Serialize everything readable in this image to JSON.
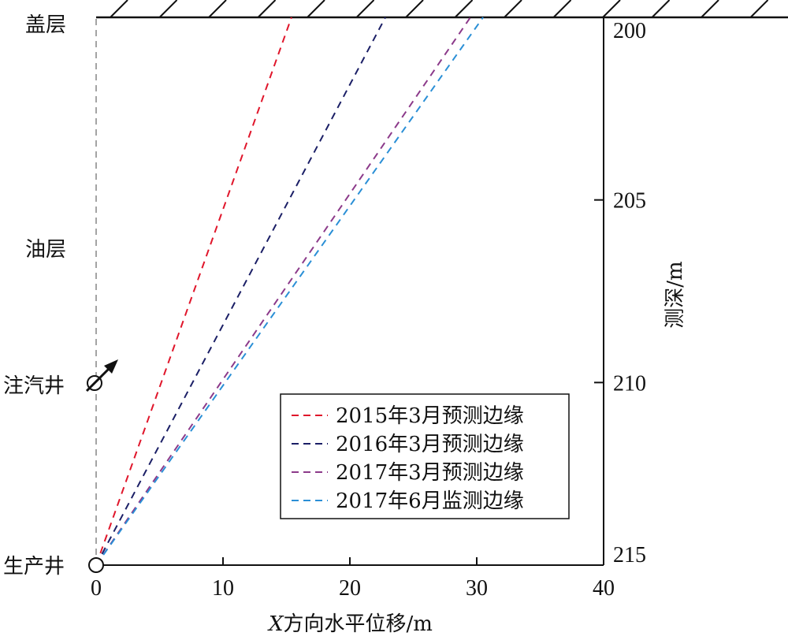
{
  "chart_data": {
    "type": "line",
    "xlabel": "X方向水平位移/m",
    "ylabel": "测深/m",
    "xlim": [
      0,
      40
    ],
    "ylim": [
      200,
      215
    ],
    "x_ticks": [
      0,
      10,
      20,
      30,
      40
    ],
    "y_ticks": [
      200,
      205,
      210,
      215
    ],
    "grid": false,
    "legend_position": "bottom-center",
    "series": [
      {
        "name": "2015年3月预测边缘",
        "color": "#e0162b",
        "x": [
          0,
          15.4
        ],
        "y": [
          215,
          200
        ]
      },
      {
        "name": "2016年3月预测边缘",
        "color": "#1b1f66",
        "x": [
          0,
          22.8
        ],
        "y": [
          215,
          200
        ]
      },
      {
        "name": "2017年3月预测边缘",
        "color": "#8c3a8a",
        "x": [
          0,
          29.5
        ],
        "y": [
          215,
          200
        ]
      },
      {
        "name": "2017年6月监测边缘",
        "color": "#2a8fd6",
        "x": [
          0,
          30.5
        ],
        "y": [
          215,
          200
        ]
      }
    ],
    "annotations": {
      "cap_layer": "盖层",
      "oil_layer": "油层",
      "injection_well": "注汽井",
      "production_well": "生产井"
    }
  }
}
